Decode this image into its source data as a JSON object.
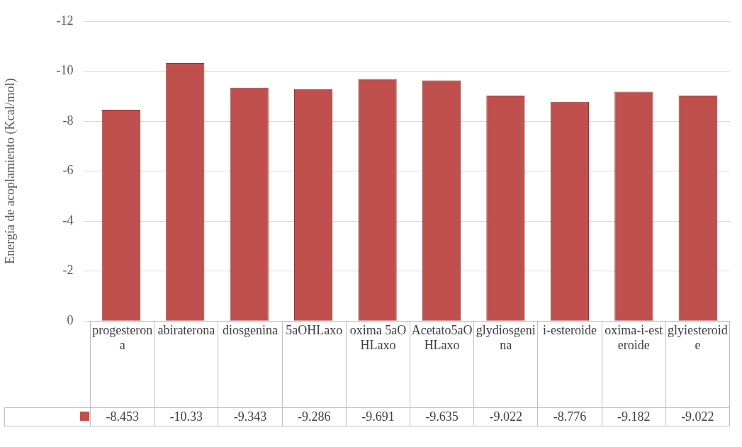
{
  "chart_data": {
    "type": "bar",
    "ylabel": "Energía de acoplamiento (Kcal/mol)",
    "categories": [
      "progesterona",
      "abiraterona",
      "diosgenina",
      "5aOHLaxo",
      "oxima 5aOHLaxo",
      "Acetato5aOHLaxo",
      "glydiosgenina",
      "i-esteroide",
      "oxima-i-esteroide",
      "glyiesteroide"
    ],
    "series": [
      {
        "color": "#c0504d",
        "values": [
          -8.453,
          -10.33,
          -9.343,
          -9.286,
          -9.691,
          -9.635,
          -9.022,
          -8.776,
          -9.182,
          -9.022
        ]
      }
    ],
    "ylim": [
      0,
      -12
    ],
    "yticks": [
      0,
      -2,
      -4,
      -6,
      -8,
      -10,
      -12
    ],
    "grid": "y",
    "data_labels": true
  }
}
